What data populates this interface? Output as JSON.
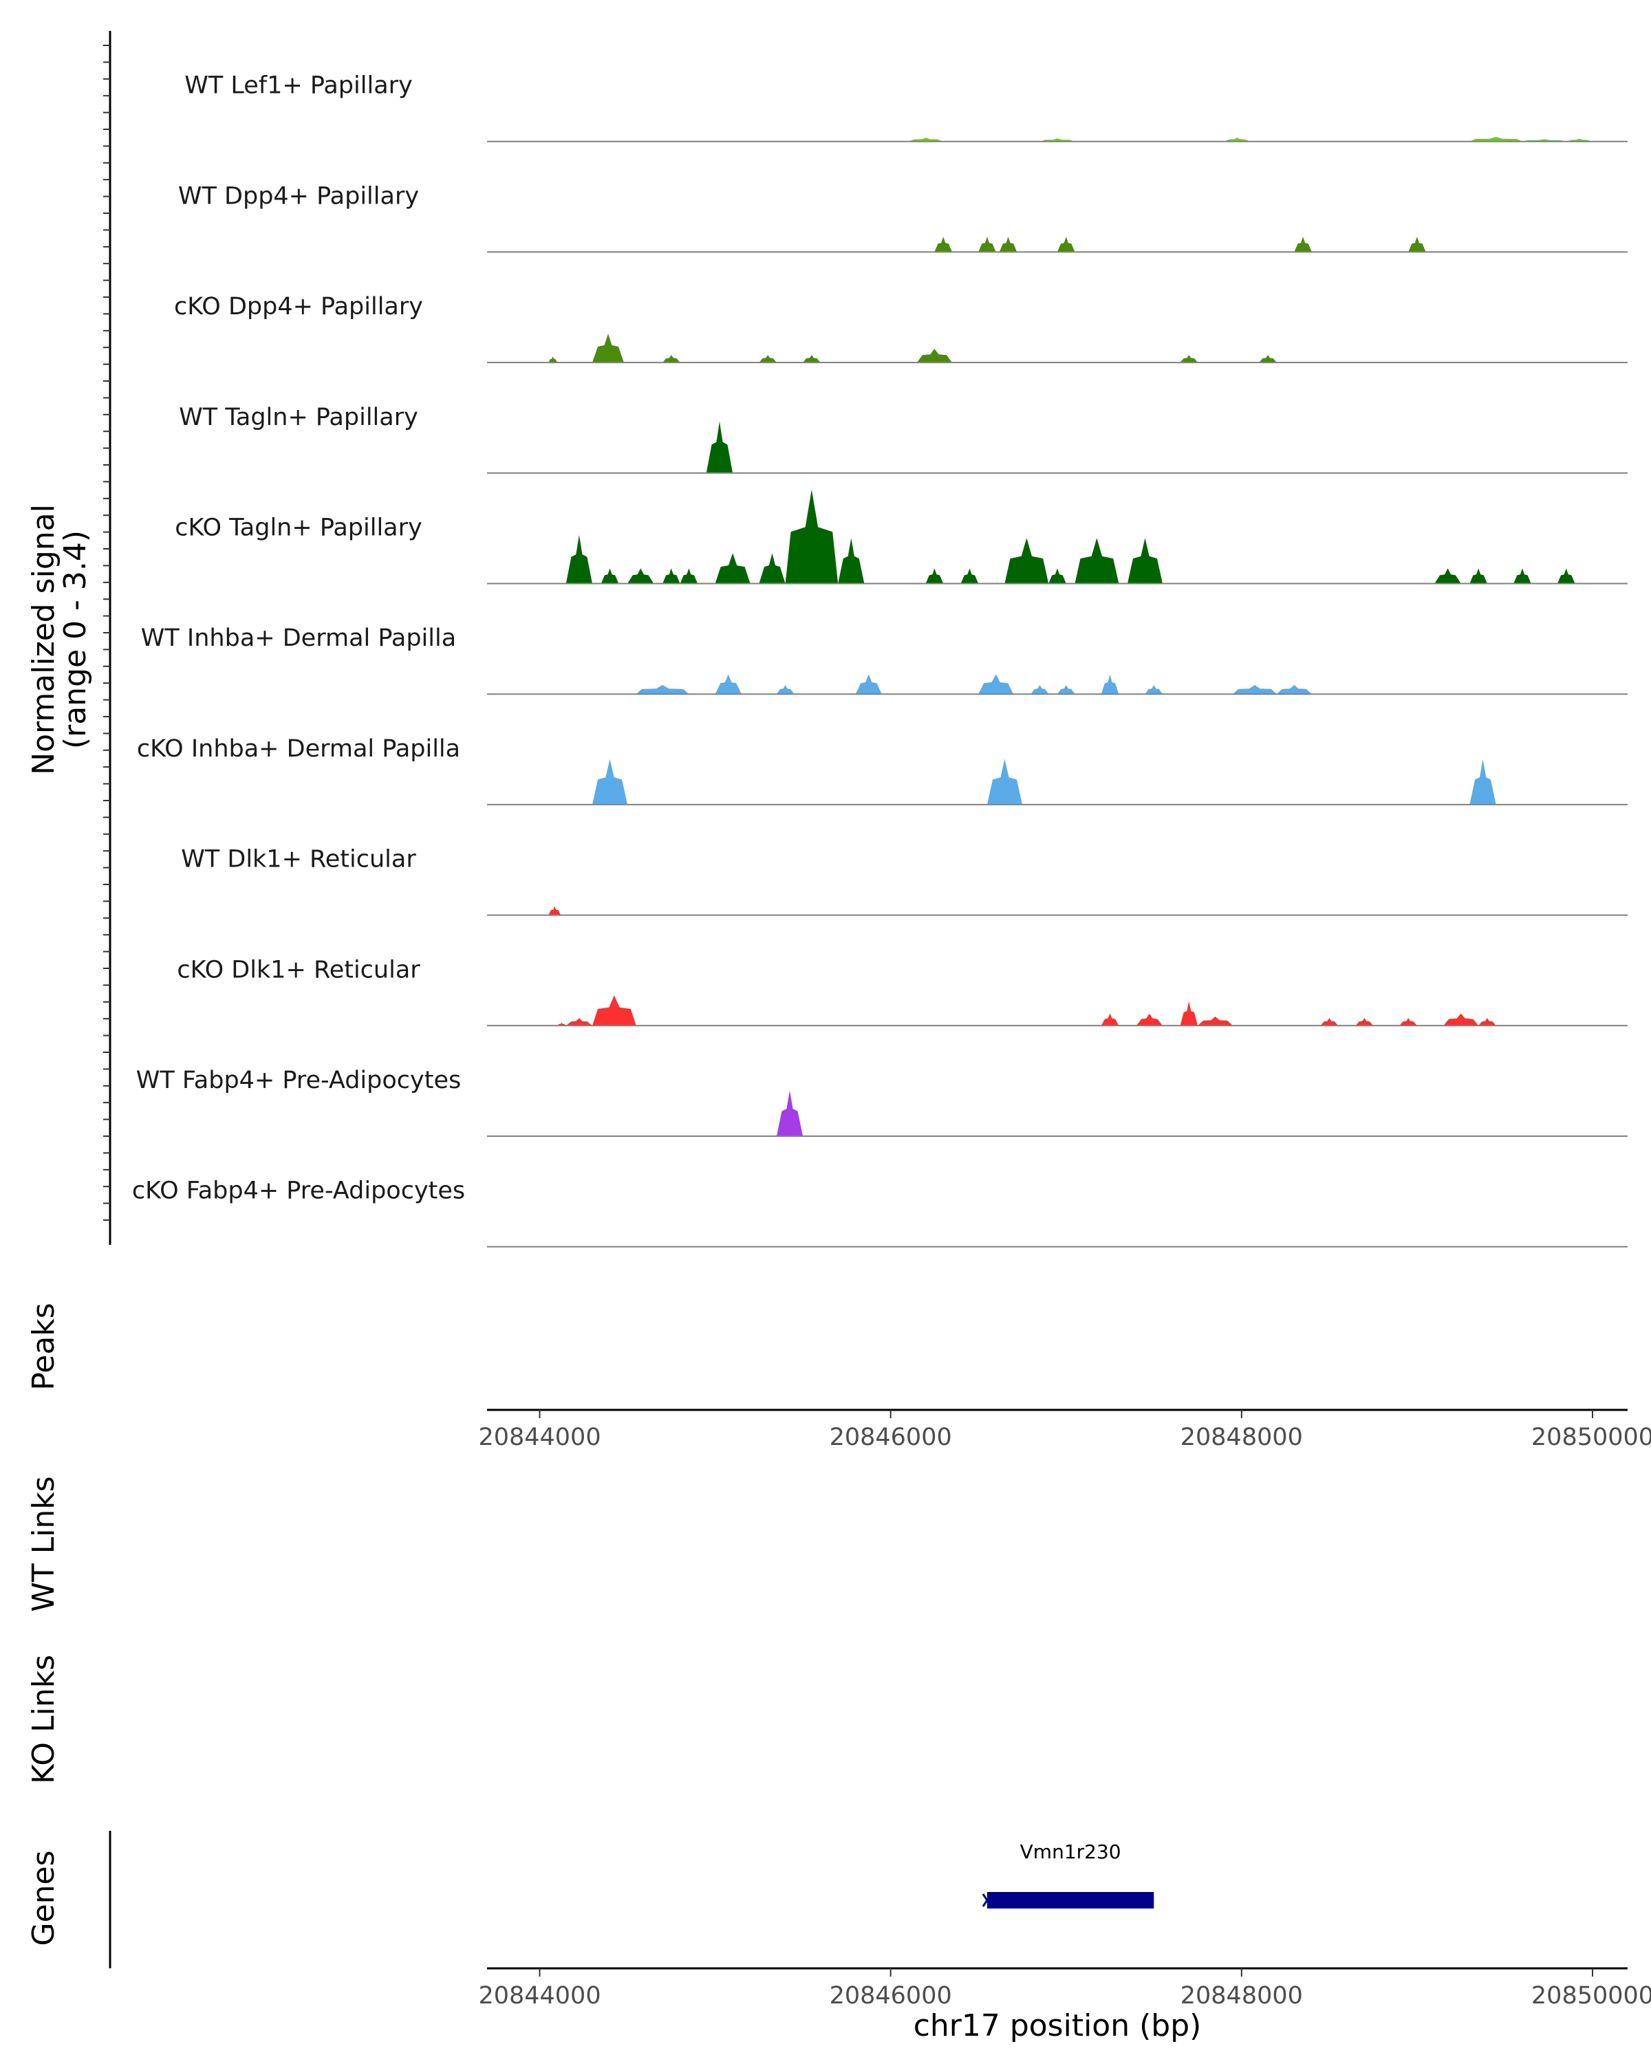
{
  "chart_data": {
    "type": "area",
    "title": "",
    "xlabel": "chr17 position (bp)",
    "ylabel": "Normalized signal",
    "ylabel_range": "(range 0 - 3.4)",
    "ylim": [
      0,
      3.4
    ],
    "xlim": [
      20843700,
      20850200
    ],
    "x_ticks": [
      20844000,
      20846000,
      20848000,
      20850000
    ],
    "x_tick_labels": [
      "20844000",
      "20846000",
      "20848000",
      "20850000"
    ],
    "tracks": [
      {
        "name": "WT Lef1+ Papillary",
        "color": "#6ccb1e",
        "peaks": [
          [
            20846100,
            20846300,
            0.25
          ],
          [
            20846850,
            20847050,
            0.2
          ],
          [
            20847900,
            20848050,
            0.25
          ],
          [
            20849300,
            20849600,
            0.3
          ],
          [
            20849600,
            20849850,
            0.15
          ],
          [
            20849850,
            20850000,
            0.18
          ]
        ]
      },
      {
        "name": "WT Dpp4+ Papillary",
        "color": "#4b8b0b",
        "peaks": [
          [
            20846250,
            20846350,
            1.0
          ],
          [
            20846500,
            20846600,
            1.0
          ],
          [
            20846620,
            20846720,
            1.0
          ],
          [
            20846950,
            20847050,
            1.0
          ],
          [
            20848300,
            20848400,
            1.0
          ],
          [
            20848950,
            20849050,
            1.0
          ]
        ]
      },
      {
        "name": "cKO Dpp4+ Papillary",
        "color": "#4b8b0b",
        "peaks": [
          [
            20844050,
            20844100,
            0.4
          ],
          [
            20844300,
            20844480,
            1.9
          ],
          [
            20844700,
            20844800,
            0.5
          ],
          [
            20845250,
            20845350,
            0.5
          ],
          [
            20845500,
            20845600,
            0.5
          ],
          [
            20846150,
            20846350,
            0.9
          ],
          [
            20847650,
            20847750,
            0.5
          ],
          [
            20848100,
            20848200,
            0.5
          ]
        ]
      },
      {
        "name": "WT Tagln+ Papillary",
        "color": "#006400",
        "peaks": [
          [
            20844950,
            20845100,
            3.4
          ]
        ]
      },
      {
        "name": "cKO Tagln+ Papillary",
        "color": "#006400",
        "peaks": [
          [
            20844150,
            20844300,
            3.2
          ],
          [
            20844350,
            20844450,
            1.0
          ],
          [
            20844500,
            20844650,
            1.0
          ],
          [
            20844700,
            20844800,
            1.0
          ],
          [
            20844800,
            20844900,
            1.0
          ],
          [
            20845000,
            20845200,
            2.0
          ],
          [
            20845250,
            20845400,
            2.0
          ],
          [
            20845400,
            20845700,
            6.2
          ],
          [
            20845700,
            20845850,
            3.0
          ],
          [
            20846200,
            20846300,
            1.0
          ],
          [
            20846400,
            20846500,
            1.0
          ],
          [
            20846650,
            20846900,
            3.0
          ],
          [
            20846900,
            20847000,
            1.0
          ],
          [
            20847050,
            20847300,
            3.0
          ],
          [
            20847350,
            20847550,
            3.0
          ],
          [
            20849100,
            20849250,
            1.0
          ],
          [
            20849300,
            20849400,
            1.0
          ],
          [
            20849550,
            20849650,
            1.0
          ],
          [
            20849800,
            20849900,
            1.0
          ]
        ]
      },
      {
        "name": "WT Inhba+ Dermal Papilla",
        "color": "#5aabe8",
        "peaks": [
          [
            20844550,
            20844850,
            0.6
          ],
          [
            20845000,
            20845150,
            1.3
          ],
          [
            20845350,
            20845450,
            0.6
          ],
          [
            20845800,
            20845950,
            1.3
          ],
          [
            20846500,
            20846700,
            1.3
          ],
          [
            20846800,
            20846900,
            0.6
          ],
          [
            20846950,
            20847050,
            0.6
          ],
          [
            20847200,
            20847300,
            1.3
          ],
          [
            20847450,
            20847550,
            0.6
          ],
          [
            20847950,
            20848200,
            0.6
          ],
          [
            20848200,
            20848400,
            0.6
          ]
        ]
      },
      {
        "name": "cKO Inhba+ Dermal Papilla",
        "color": "#5aabe8",
        "peaks": [
          [
            20844300,
            20844500,
            3.0
          ],
          [
            20846550,
            20846750,
            3.0
          ],
          [
            20849300,
            20849450,
            3.0
          ]
        ]
      },
      {
        "name": "WT Dlk1+ Reticular",
        "color": "#fc3030",
        "peaks": [
          [
            20844050,
            20844120,
            0.6
          ]
        ]
      },
      {
        "name": "cKO Dlk1+ Reticular",
        "color": "#fc3030",
        "peaks": [
          [
            20844100,
            20844150,
            0.2
          ],
          [
            20844150,
            20844300,
            0.5
          ],
          [
            20844300,
            20844550,
            2.0
          ],
          [
            20847200,
            20847300,
            0.8
          ],
          [
            20847400,
            20847550,
            0.8
          ],
          [
            20847650,
            20847750,
            1.6
          ],
          [
            20847750,
            20847950,
            0.6
          ],
          [
            20848450,
            20848550,
            0.5
          ],
          [
            20848650,
            20848750,
            0.5
          ],
          [
            20848900,
            20849000,
            0.5
          ],
          [
            20849150,
            20849350,
            0.8
          ],
          [
            20849350,
            20849450,
            0.5
          ]
        ]
      },
      {
        "name": "WT Fabp4+ Pre-Adipocytes",
        "color": "#a63be8",
        "peaks": [
          [
            20845350,
            20845500,
            3.0
          ]
        ]
      },
      {
        "name": "cKO Fabp4+ Pre-Adipocytes",
        "color": "#808080",
        "peaks": []
      }
    ],
    "panels": {
      "peaks_label": "Peaks",
      "wt_links_label": "WT Links",
      "ko_links_label": "KO Links",
      "genes_label": "Genes"
    },
    "genes": [
      {
        "name": "Vmn1r230",
        "start": 20846550,
        "end": 20847500,
        "strand": "-",
        "color": "#00008b"
      }
    ]
  }
}
